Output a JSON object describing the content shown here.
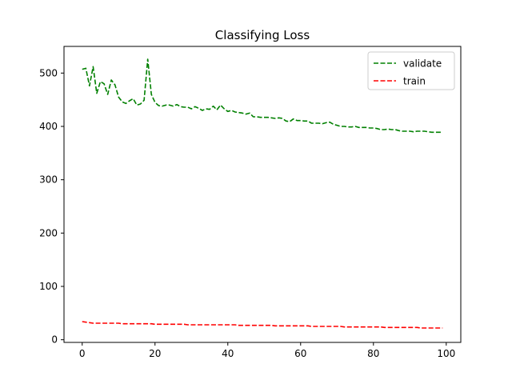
{
  "chart_data": {
    "type": "line",
    "title": "Classifying Loss",
    "xlabel": "",
    "ylabel": "",
    "xlim": [
      -5,
      104
    ],
    "ylim": [
      -5,
      550
    ],
    "xticks": [
      0,
      20,
      40,
      60,
      80,
      100
    ],
    "yticks": [
      0,
      100,
      200,
      300,
      400,
      500
    ],
    "grid": false,
    "legend_position": "top-right",
    "series": [
      {
        "name": "validate",
        "color": "#008000",
        "style": "dashed",
        "x": [
          0,
          1,
          2,
          3,
          4,
          5,
          6,
          7,
          8,
          9,
          10,
          11,
          12,
          13,
          14,
          15,
          16,
          17,
          18,
          19,
          20,
          21,
          22,
          23,
          24,
          25,
          26,
          27,
          28,
          29,
          30,
          31,
          32,
          33,
          34,
          35,
          36,
          37,
          38,
          39,
          40,
          41,
          42,
          43,
          44,
          45,
          46,
          47,
          48,
          49,
          50,
          51,
          52,
          53,
          54,
          55,
          56,
          57,
          58,
          59,
          60,
          61,
          62,
          63,
          64,
          65,
          66,
          67,
          68,
          69,
          70,
          71,
          72,
          73,
          74,
          75,
          76,
          77,
          78,
          79,
          80,
          81,
          82,
          83,
          84,
          85,
          86,
          87,
          88,
          89,
          90,
          91,
          92,
          93,
          94,
          95,
          96,
          97,
          98,
          99
        ],
        "values": [
          507,
          509,
          476,
          512,
          462,
          484,
          480,
          460,
          487,
          478,
          455,
          446,
          443,
          448,
          452,
          440,
          442,
          449,
          526,
          460,
          445,
          439,
          438,
          440,
          440,
          438,
          441,
          437,
          436,
          436,
          433,
          437,
          434,
          430,
          433,
          432,
          438,
          431,
          440,
          433,
          428,
          430,
          427,
          426,
          425,
          423,
          425,
          418,
          418,
          417,
          417,
          417,
          416,
          415,
          416,
          415,
          410,
          409,
          414,
          411,
          411,
          410,
          410,
          406,
          406,
          406,
          405,
          407,
          408,
          404,
          402,
          400,
          400,
          399,
          399,
          400,
          398,
          398,
          398,
          397,
          397,
          396,
          394,
          394,
          395,
          394,
          394,
          392,
          391,
          391,
          391,
          390,
          391,
          391,
          391,
          390,
          389,
          389,
          389,
          389
        ]
      },
      {
        "name": "train",
        "color": "#ff0000",
        "style": "dashed",
        "x": [
          0,
          1,
          2,
          3,
          4,
          5,
          6,
          7,
          8,
          9,
          10,
          11,
          12,
          13,
          14,
          15,
          16,
          17,
          18,
          19,
          20,
          21,
          22,
          23,
          24,
          25,
          26,
          27,
          28,
          29,
          30,
          31,
          32,
          33,
          34,
          35,
          36,
          37,
          38,
          39,
          40,
          41,
          42,
          43,
          44,
          45,
          46,
          47,
          48,
          49,
          50,
          51,
          52,
          53,
          54,
          55,
          56,
          57,
          58,
          59,
          60,
          61,
          62,
          63,
          64,
          65,
          66,
          67,
          68,
          69,
          70,
          71,
          72,
          73,
          74,
          75,
          76,
          77,
          78,
          79,
          80,
          81,
          82,
          83,
          84,
          85,
          86,
          87,
          88,
          89,
          90,
          91,
          92,
          93,
          94,
          95,
          96,
          97,
          98,
          99
        ],
        "values": [
          34,
          33,
          32,
          31,
          31,
          31,
          31,
          31,
          31,
          31,
          31,
          30,
          30,
          30,
          30,
          30,
          30,
          30,
          30,
          30,
          29,
          29,
          29,
          29,
          29,
          29,
          29,
          29,
          29,
          28,
          28,
          28,
          28,
          28,
          28,
          28,
          28,
          28,
          28,
          28,
          28,
          28,
          28,
          27,
          27,
          27,
          27,
          27,
          27,
          27,
          27,
          27,
          27,
          26,
          26,
          26,
          26,
          26,
          26,
          26,
          26,
          26,
          26,
          25,
          25,
          25,
          25,
          25,
          25,
          25,
          25,
          25,
          24,
          24,
          24,
          24,
          24,
          24,
          24,
          24,
          24,
          24,
          24,
          23,
          23,
          23,
          23,
          23,
          23,
          23,
          23,
          23,
          23,
          22,
          22,
          22,
          22,
          22,
          22,
          22
        ]
      }
    ]
  }
}
